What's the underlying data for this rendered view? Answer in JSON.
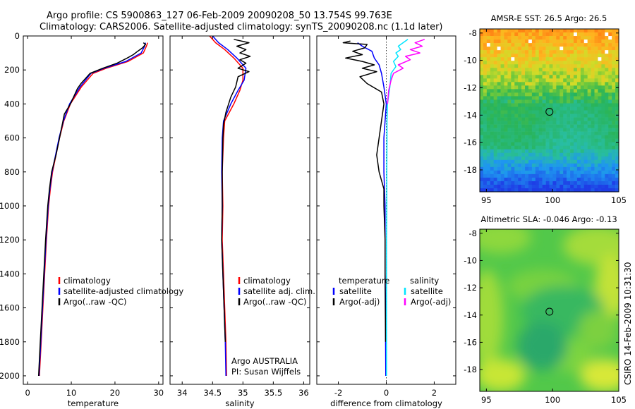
{
  "header": {
    "line1": "Argo profile: CS 5900863_127 06-Feb-2009 20090208_50 13.754S 99.763E",
    "line2": "Climatology: CARS2006. Satellite-adjusted climatology: synTS_20090208.nc (1.1d later)"
  },
  "footer_note": "CSIRO 14-Feb-2009 10:31:30",
  "colors": {
    "climatology": "#ff0000",
    "satellite": "#0000ff",
    "argo": "#000000",
    "salinity_satellite": "#00e5ff",
    "salinity_argo": "#ff00ff"
  },
  "chart_data": [
    {
      "type": "line",
      "xlabel": "temperature",
      "ylabel": "",
      "xlim": [
        -1,
        31
      ],
      "ylim": [
        2050,
        0
      ],
      "xticks": [
        0,
        10,
        20,
        30
      ],
      "yticks": [
        0,
        200,
        400,
        600,
        800,
        1000,
        1200,
        1400,
        1600,
        1800,
        2000
      ],
      "legend_position": "lower-right",
      "series": [
        {
          "name": "climatology",
          "color": "#ff0000",
          "points": [
            [
              27.5,
              40
            ],
            [
              27.2,
              60
            ],
            [
              26.5,
              100
            ],
            [
              23,
              150
            ],
            [
              18,
              190
            ],
            [
              15,
              220
            ],
            [
              12.3,
              300
            ],
            [
              9.8,
              400
            ],
            [
              8.3,
              500
            ],
            [
              7.3,
              600
            ],
            [
              6.5,
              700
            ],
            [
              5.7,
              800
            ],
            [
              5.2,
              900
            ],
            [
              4.8,
              1000
            ],
            [
              4.3,
              1200
            ],
            [
              3.9,
              1400
            ],
            [
              3.5,
              1600
            ],
            [
              3.1,
              1800
            ],
            [
              2.8,
              1950
            ],
            [
              2.7,
              2000
            ]
          ]
        },
        {
          "name": "satellite-adjusted climatology",
          "color": "#0000ff",
          "points": [
            [
              27,
              40
            ],
            [
              26.8,
              60
            ],
            [
              26,
              100
            ],
            [
              22.5,
              150
            ],
            [
              17.5,
              190
            ],
            [
              14.5,
              220
            ],
            [
              12,
              300
            ],
            [
              9.6,
              400
            ],
            [
              8.2,
              500
            ],
            [
              7.2,
              600
            ],
            [
              6.4,
              700
            ],
            [
              5.6,
              800
            ],
            [
              5.1,
              900
            ],
            [
              4.7,
              1000
            ],
            [
              4.2,
              1200
            ],
            [
              3.8,
              1400
            ],
            [
              3.4,
              1600
            ],
            [
              3.0,
              1800
            ],
            [
              2.7,
              1950
            ],
            [
              2.6,
              2000
            ]
          ]
        },
        {
          "name": "Argo(..raw -QC)",
          "color": "#000000",
          "points": [
            [
              26.5,
              40
            ],
            [
              27,
              50
            ],
            [
              26.3,
              70
            ],
            [
              25.2,
              90
            ],
            [
              24.2,
              110
            ],
            [
              22.8,
              130
            ],
            [
              20.5,
              160
            ],
            [
              17.2,
              190
            ],
            [
              14.3,
              220
            ],
            [
              12.2,
              280
            ],
            [
              11.4,
              310
            ],
            [
              9.8,
              400
            ],
            [
              8.4,
              460
            ],
            [
              7.3,
              600
            ],
            [
              6.5,
              700
            ],
            [
              5.5,
              800
            ],
            [
              5.0,
              900
            ],
            [
              4.6,
              1000
            ],
            [
              4.1,
              1200
            ],
            [
              3.7,
              1400
            ],
            [
              3.3,
              1600
            ],
            [
              2.9,
              1800
            ],
            [
              2.6,
              1950
            ],
            [
              2.5,
              2000
            ]
          ]
        }
      ]
    },
    {
      "type": "line",
      "xlabel": "salinity",
      "ylabel": "",
      "xlim": [
        33.8,
        36.1
      ],
      "ylim": [
        2050,
        0
      ],
      "xticks": [
        34,
        34.5,
        35,
        35.5,
        36
      ],
      "xtick_labels": [
        "34",
        "34.5",
        "35",
        "35.5",
        "36"
      ],
      "legend_position": "lower-right",
      "annotation_lines": [
        "Argo AUSTRALIA",
        "PI: Susan Wijffels"
      ],
      "series": [
        {
          "name": "climatology",
          "color": "#ff0000",
          "points": [
            [
              34.45,
              0
            ],
            [
              34.55,
              40
            ],
            [
              34.7,
              80
            ],
            [
              34.85,
              130
            ],
            [
              35.0,
              190
            ],
            [
              35.0,
              260
            ],
            [
              34.95,
              320
            ],
            [
              34.85,
              400
            ],
            [
              34.7,
              500
            ],
            [
              34.68,
              600
            ],
            [
              34.66,
              800
            ],
            [
              34.67,
              1000
            ],
            [
              34.66,
              1200
            ],
            [
              34.68,
              1400
            ],
            [
              34.7,
              1600
            ],
            [
              34.72,
              1800
            ],
            [
              34.73,
              2000
            ]
          ]
        },
        {
          "name": "satellite adj. clim.",
          "color": "#0000ff",
          "points": [
            [
              34.5,
              0
            ],
            [
              34.6,
              40
            ],
            [
              34.75,
              80
            ],
            [
              34.9,
              130
            ],
            [
              35.05,
              190
            ],
            [
              35.02,
              260
            ],
            [
              34.92,
              320
            ],
            [
              34.8,
              400
            ],
            [
              34.68,
              500
            ],
            [
              34.66,
              600
            ],
            [
              34.65,
              800
            ],
            [
              34.66,
              1000
            ],
            [
              34.65,
              1200
            ],
            [
              34.67,
              1400
            ],
            [
              34.69,
              1600
            ],
            [
              34.71,
              1800
            ],
            [
              34.72,
              2000
            ]
          ]
        },
        {
          "name": "Argo(..raw -QC)",
          "color": "#000000",
          "points": [
            [
              34.85,
              20
            ],
            [
              35.1,
              40
            ],
            [
              34.9,
              60
            ],
            [
              35.05,
              80
            ],
            [
              34.95,
              100
            ],
            [
              35.12,
              120
            ],
            [
              34.95,
              140
            ],
            [
              35.05,
              160
            ],
            [
              34.92,
              190
            ],
            [
              35.1,
              210
            ],
            [
              34.92,
              240
            ],
            [
              34.88,
              300
            ],
            [
              34.8,
              360
            ],
            [
              34.72,
              450
            ],
            [
              34.68,
              520
            ],
            [
              34.67,
              600
            ],
            [
              34.66,
              800
            ],
            [
              34.66,
              1000
            ],
            [
              34.65,
              1200
            ],
            [
              34.67,
              1400
            ],
            [
              34.69,
              1600
            ],
            [
              34.71,
              1800
            ]
          ]
        }
      ]
    },
    {
      "type": "line",
      "xlabel": "difference from climatology",
      "ylabel": "",
      "xlim": [
        -2.9,
        2.9
      ],
      "ylim": [
        2050,
        0
      ],
      "xticks": [
        -2,
        0,
        2
      ],
      "legend_position": "lower-center",
      "legend_groups": [
        {
          "title": "temperature",
          "entries": [
            {
              "label": "satellite",
              "color": "#0000ff"
            },
            {
              "label": "Argo(-adj)",
              "color": "#000000"
            }
          ]
        },
        {
          "title": "salinity",
          "entries": [
            {
              "label": "satellite",
              "color": "#00e5ff"
            },
            {
              "label": "Argo(-adj)",
              "color": "#ff00ff"
            }
          ]
        }
      ],
      "series": [
        {
          "name": "temperature satellite",
          "color": "#0000ff",
          "points": [
            [
              -1.2,
              40
            ],
            [
              -1.0,
              60
            ],
            [
              -0.6,
              90
            ],
            [
              -0.5,
              130
            ],
            [
              -0.3,
              170
            ],
            [
              -0.2,
              220
            ],
            [
              -0.1,
              300
            ],
            [
              0,
              400
            ],
            [
              -0.05,
              500
            ],
            [
              -0.1,
              600
            ],
            [
              -0.1,
              800
            ],
            [
              -0.05,
              1000
            ],
            [
              -0.05,
              1200
            ],
            [
              -0.05,
              1400
            ],
            [
              -0.03,
              1600
            ],
            [
              -0.03,
              1800
            ],
            [
              -0.02,
              2000
            ]
          ]
        },
        {
          "name": "temperature Argo(-adj)",
          "color": "#000000",
          "points": [
            [
              -1.5,
              30
            ],
            [
              -1.8,
              40
            ],
            [
              -0.8,
              50
            ],
            [
              -0.9,
              70
            ],
            [
              -1.4,
              90
            ],
            [
              -1.0,
              110
            ],
            [
              -1.7,
              130
            ],
            [
              -1.0,
              150
            ],
            [
              -0.5,
              170
            ],
            [
              -1.0,
              190
            ],
            [
              -0.4,
              210
            ],
            [
              -1.1,
              240
            ],
            [
              -0.8,
              280
            ],
            [
              -0.2,
              330
            ],
            [
              -0.1,
              400
            ],
            [
              -0.2,
              500
            ],
            [
              -0.3,
              600
            ],
            [
              -0.4,
              700
            ],
            [
              -0.3,
              800
            ],
            [
              -0.1,
              900
            ],
            [
              -0.1,
              1000
            ],
            [
              -0.05,
              1200
            ],
            [
              -0.05,
              1400
            ],
            [
              -0.04,
              1600
            ],
            [
              -0.03,
              1800
            ]
          ]
        },
        {
          "name": "salinity satellite",
          "color": "#00e5ff",
          "points": [
            [
              0.9,
              20
            ],
            [
              0.7,
              40
            ],
            [
              0.5,
              60
            ],
            [
              0.6,
              80
            ],
            [
              0.4,
              100
            ],
            [
              0.5,
              120
            ],
            [
              0.3,
              150
            ],
            [
              0.4,
              180
            ],
            [
              0.2,
              220
            ],
            [
              0.15,
              300
            ],
            [
              0.05,
              400
            ],
            [
              0.03,
              500
            ],
            [
              0.03,
              600
            ],
            [
              0.02,
              800
            ],
            [
              0.02,
              1000
            ],
            [
              0.01,
              1200
            ],
            [
              0.01,
              1600
            ],
            [
              0.01,
              2000
            ]
          ]
        },
        {
          "name": "salinity Argo(-adj)",
          "color": "#ff00ff",
          "points": [
            [
              1.6,
              20
            ],
            [
              1.2,
              40
            ],
            [
              1.5,
              60
            ],
            [
              1.0,
              80
            ],
            [
              1.4,
              100
            ],
            [
              0.8,
              120
            ],
            [
              1.0,
              140
            ],
            [
              0.5,
              170
            ],
            [
              0.7,
              190
            ],
            [
              0.3,
              220
            ],
            [
              0.2,
              260
            ],
            [
              0.1,
              320
            ],
            [
              0.05,
              400
            ]
          ]
        }
      ]
    },
    {
      "type": "heatmap",
      "title": "AMSR-E SST: 26.5 Argo: 26.5",
      "xlabel": "",
      "ylabel": "",
      "xlim": [
        94.5,
        105
      ],
      "ylim": [
        -19.6,
        -7.7
      ],
      "xticks": [
        95,
        100,
        105
      ],
      "yticks": [
        -8,
        -10,
        -12,
        -14,
        -16,
        -18
      ],
      "marker": {
        "lon": 99.763,
        "lat": -13.754
      }
    },
    {
      "type": "heatmap",
      "title": "Altimetric SLA: -0.046 Argo: -0.13",
      "xlabel": "",
      "ylabel": "",
      "xlim": [
        94.5,
        105
      ],
      "ylim": [
        -19.6,
        -7.7
      ],
      "xticks": [
        95,
        100,
        105
      ],
      "yticks": [
        -8,
        -10,
        -12,
        -14,
        -16,
        -18
      ],
      "marker": {
        "lon": 99.763,
        "lat": -13.754
      }
    }
  ]
}
